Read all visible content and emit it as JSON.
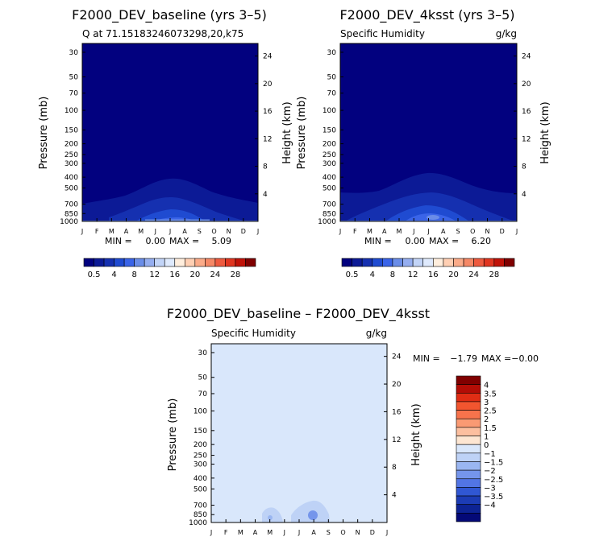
{
  "chart_data": [
    {
      "type": "heatmap",
      "title": "F2000_DEV_baseline (yrs 3–5)",
      "subtitle": "Q at 71.15183246073298,20,k75",
      "ylabel": "Pressure (mb)",
      "ylabel_right": "Height (km)",
      "x_ticks": [
        "J",
        "F",
        "M",
        "A",
        "M",
        "J",
        "J",
        "A",
        "S",
        "O",
        "N",
        "D",
        "J"
      ],
      "y_ticks": [
        30,
        50,
        70,
        100,
        150,
        200,
        250,
        300,
        400,
        500,
        700,
        850,
        1000
      ],
      "ylim": [
        1000,
        25
      ],
      "height_ticks": [
        4,
        8,
        12,
        16,
        20,
        24
      ],
      "stats": {
        "min_label": "MIN =",
        "min": "0.00",
        "max_label": "MAX =",
        "max": "5.09"
      },
      "contour_levels": [
        1,
        2,
        3,
        4,
        5
      ]
    },
    {
      "type": "heatmap",
      "title": "F2000_DEV_4ksst (yrs 3–5)",
      "subtitle": "Specific Humidity",
      "units": "g/kg",
      "ylabel": "Pressure (mb)",
      "ylabel_right": "Height (km)",
      "x_ticks": [
        "J",
        "F",
        "M",
        "A",
        "M",
        "J",
        "J",
        "A",
        "S",
        "O",
        "N",
        "D",
        "J"
      ],
      "y_ticks": [
        30,
        50,
        70,
        100,
        150,
        200,
        250,
        300,
        400,
        500,
        700,
        850,
        1000
      ],
      "ylim": [
        1000,
        25
      ],
      "height_ticks": [
        4,
        8,
        12,
        16,
        20,
        24
      ],
      "stats": {
        "min_label": "MIN =",
        "min": "0.00",
        "max_label": "MAX =",
        "max": "6.20"
      },
      "contour_levels": [
        1,
        2,
        3,
        4,
        5,
        6
      ]
    },
    {
      "type": "heatmap",
      "title": "F2000_DEV_baseline – F2000_DEV_4ksst",
      "subtitle": "Specific Humidity",
      "units": "g/kg",
      "ylabel": "Pressure (mb)",
      "ylabel_right": "Height (km)",
      "x_ticks": [
        "J",
        "F",
        "M",
        "A",
        "M",
        "J",
        "J",
        "A",
        "S",
        "O",
        "N",
        "D",
        "J"
      ],
      "y_ticks": [
        30,
        50,
        70,
        100,
        150,
        200,
        250,
        300,
        400,
        500,
        700,
        850,
        1000
      ],
      "ylim": [
        1000,
        25
      ],
      "height_ticks": [
        4,
        8,
        12,
        16,
        20,
        24
      ],
      "stats": {
        "min_label": "MIN =",
        "min": "−1.79",
        "max_label": "MAX =",
        "max": "−0.00"
      }
    }
  ],
  "colorbar_top": {
    "colors": [
      "#02017f",
      "#0c1a96",
      "#1530b0",
      "#1f4bd1",
      "#3a64e8",
      "#6a8de8",
      "#95aef0",
      "#c2d4f7",
      "#dfeafd",
      "#ffeedd",
      "#ffcfb3",
      "#fbab89",
      "#f58866",
      "#ee5a3f",
      "#e03520",
      "#c01208",
      "#800000"
    ],
    "labels": [
      "0.5",
      "4",
      "8",
      "12",
      "16",
      "20",
      "24",
      "28"
    ]
  },
  "colorbar_bottom": {
    "colors": [
      "#800000",
      "#b30d06",
      "#e02d14",
      "#f2552f",
      "#f7734c",
      "#fa9a73",
      "#fcbf9f",
      "#fde6d2",
      "#d9e7fb",
      "#bed2f6",
      "#9ab6f1",
      "#7595eb",
      "#5275e4",
      "#3057d3",
      "#1c3cb5",
      "#0d2394",
      "#040977"
    ],
    "labels": [
      "4",
      "3.5",
      "3",
      "2.5",
      "2",
      "1.5",
      "1",
      "0",
      "−1",
      "−1.5",
      "−2",
      "−2.5",
      "−3",
      "−3.5",
      "−4"
    ]
  }
}
